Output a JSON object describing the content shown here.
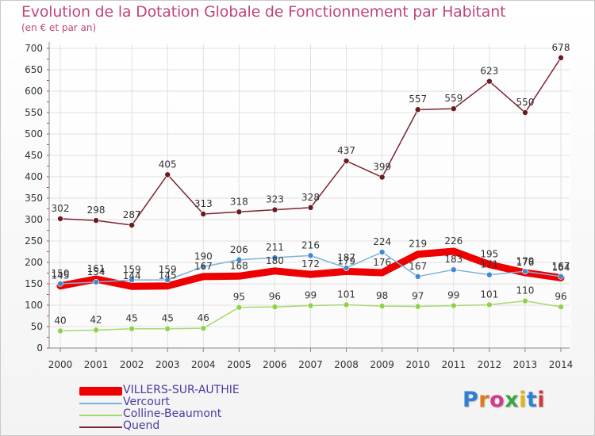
{
  "title": "Evolution de la Dotation Globale de Fonctionnement par Habitant",
  "subtitle": "(en € et par an)",
  "logo_text": "Proxiti",
  "colors": {
    "title": "#c0467a",
    "legend_text": "#4a3aa0",
    "grid": "#e0e0e0",
    "axis": "#888888",
    "axis_ticks": "#d23a3a"
  },
  "chart_data": {
    "type": "line",
    "title": "Evolution de la Dotation Globale de Fonctionnement par Habitant",
    "subtitle": "(en € et par an)",
    "xlabel": "",
    "ylabel": "",
    "ylim": [
      0,
      700
    ],
    "yticks": [
      0,
      50,
      100,
      150,
      200,
      250,
      300,
      350,
      400,
      450,
      500,
      550,
      600,
      650,
      700
    ],
    "grid": true,
    "legend_position": "bottom-left",
    "x": [
      "2000",
      "2001",
      "2002",
      "2003",
      "2004",
      "2005",
      "2006",
      "2007",
      "2008",
      "2009",
      "2010",
      "2011",
      "2012",
      "2013",
      "2014"
    ],
    "series": [
      {
        "name": "VILLERS-SUR-AUTHIE",
        "color": "#ee0000",
        "values": [
          145,
          161,
          144,
          145,
          167,
          168,
          180,
          172,
          179,
          176,
          219,
          226,
          195,
          176,
          164
        ]
      },
      {
        "name": "Vercourt",
        "color": "#7fb2d9",
        "marker": "#3d8ad0",
        "values": [
          150,
          154,
          159,
          159,
          190,
          206,
          211,
          216,
          187,
          224,
          167,
          183,
          171,
          179,
          167
        ]
      },
      {
        "name": "Colline-Beaumont",
        "color": "#a7d870",
        "marker": "#8fd24a",
        "values": [
          40,
          42,
          45,
          45,
          46,
          95,
          96,
          99,
          101,
          98,
          97,
          99,
          101,
          110,
          96
        ]
      },
      {
        "name": "Quend",
        "color": "#7a2430",
        "marker": "#6b1a20",
        "values": [
          302,
          298,
          287,
          405,
          313,
          318,
          323,
          328,
          437,
          399,
          557,
          559,
          623,
          550,
          678
        ]
      }
    ]
  }
}
